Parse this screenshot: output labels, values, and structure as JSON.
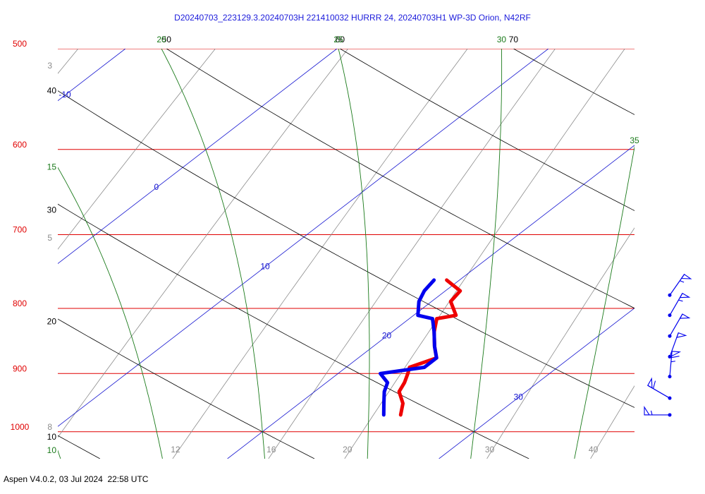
{
  "chart_data": {
    "type": "skewt",
    "title": "D20240703_223129.3.20240703H 221410032 HURRR 24, 20240703H1 WP-3D Orion, N42RF",
    "ylim": [
      1050,
      500
    ],
    "yticks": [
      500,
      600,
      700,
      800,
      900,
      1000
    ],
    "isobar_color": "#e00000",
    "isotherms": [
      -10,
      0,
      10,
      20,
      30
    ],
    "isotherm_color": "#1414d0",
    "dry_adiabats": [
      10,
      20,
      30,
      40,
      50,
      60,
      70
    ],
    "dry_adiabat_color": "#000000",
    "moist_adiabats": [
      10,
      15,
      20,
      25,
      30,
      35
    ],
    "moist_adiabat_color": "#1a7a1a",
    "mixing_ratios": [
      3,
      5,
      8,
      12,
      16,
      20,
      30,
      40
    ],
    "mixing_ratio_color": "#8c8c8c",
    "pressure": [
      760,
      775,
      790,
      810,
      815,
      835,
      857,
      875,
      890,
      900,
      915,
      930,
      950,
      970
    ],
    "series": [
      {
        "color": "#ee0000",
        "values": [
          19.4,
          20.7,
          20.9,
          22.0,
          21.3,
          22.0,
          22.9,
          23.7,
          23.0,
          23.3,
          23.7,
          24.0,
          24.9,
          25.5
        ]
      },
      {
        "color": "#0000ee",
        "values": [
          18.8,
          19.0,
          19.4,
          20.2,
          21.1,
          22.0,
          22.9,
          23.7,
          23.7,
          22.0,
          22.9,
          23.3,
          24.0,
          24.7
        ]
      }
    ],
    "wind": {
      "color": "#0000ee",
      "pressure": [
        781,
        810,
        841,
        873,
        905,
        941,
        970
      ],
      "direction": [
        35,
        30,
        30,
        20,
        5,
        300,
        270
      ],
      "speed": [
        55,
        55,
        50,
        50,
        65,
        60,
        55
      ]
    }
  },
  "footer": "Aspen V4.0.2, 03 Jul 2024  22:58 UTC"
}
